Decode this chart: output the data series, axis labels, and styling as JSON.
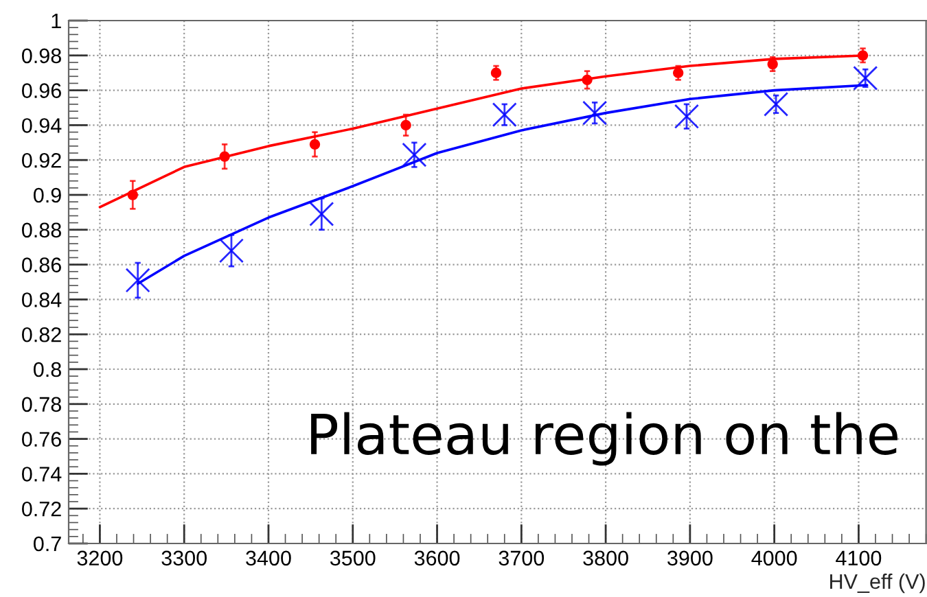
{
  "chart_data": {
    "type": "scatter",
    "xlabel": "HV_eff (V)",
    "xlim": [
      3163,
      4180
    ],
    "xticks": [
      3200,
      3300,
      3400,
      3500,
      3600,
      3700,
      3800,
      3900,
      4000,
      4100
    ],
    "ylim": [
      0.7,
      1
    ],
    "yticks": [
      0.7,
      0.72,
      0.74,
      0.76,
      0.78,
      0.8,
      0.82,
      0.84,
      0.86,
      0.88,
      0.9,
      0.92,
      0.94,
      0.96,
      0.98,
      1
    ],
    "grid": true,
    "annotations": [
      "Plateau region on the"
    ],
    "series": [
      {
        "color": "#ff0000",
        "marker": "circle",
        "x": [
          3239,
          3348,
          3455,
          3563,
          3670,
          3778,
          3886,
          3998,
          4105
        ],
        "values": [
          0.9,
          0.922,
          0.929,
          0.94,
          0.97,
          0.966,
          0.97,
          0.975,
          0.98
        ],
        "errors": [
          0.008,
          0.007,
          0.007,
          0.006,
          0.004,
          0.005,
          0.004,
          0.004,
          0.004
        ]
      },
      {
        "color": "#0000ff",
        "marker": "cross",
        "x": [
          3245,
          3356,
          3463,
          3573,
          3680,
          3787,
          3896,
          4002,
          4108
        ],
        "values": [
          0.851,
          0.868,
          0.889,
          0.923,
          0.946,
          0.947,
          0.945,
          0.952,
          0.967
        ],
        "errors": [
          0.01,
          0.009,
          0.009,
          0.007,
          0.006,
          0.006,
          0.007,
          0.005,
          0.005
        ]
      },
      {
        "type": "line",
        "color": "#ff0000",
        "marker": "none",
        "line_style": "solid",
        "x": [
          3200,
          3300,
          3400,
          3500,
          3600,
          3700,
          3800,
          3900,
          4000,
          4110
        ],
        "values": [
          0.893,
          0.916,
          0.928,
          0.938,
          0.9495,
          0.961,
          0.968,
          0.974,
          0.978,
          0.98
        ]
      },
      {
        "type": "line",
        "color": "#0000ff",
        "marker": "none",
        "line_style": "solid",
        "x": [
          3245,
          3300,
          3400,
          3500,
          3600,
          3700,
          3800,
          3900,
          4000,
          4110
        ],
        "values": [
          0.849,
          0.865,
          0.887,
          0.905,
          0.924,
          0.937,
          0.947,
          0.955,
          0.96,
          0.963
        ]
      }
    ]
  }
}
